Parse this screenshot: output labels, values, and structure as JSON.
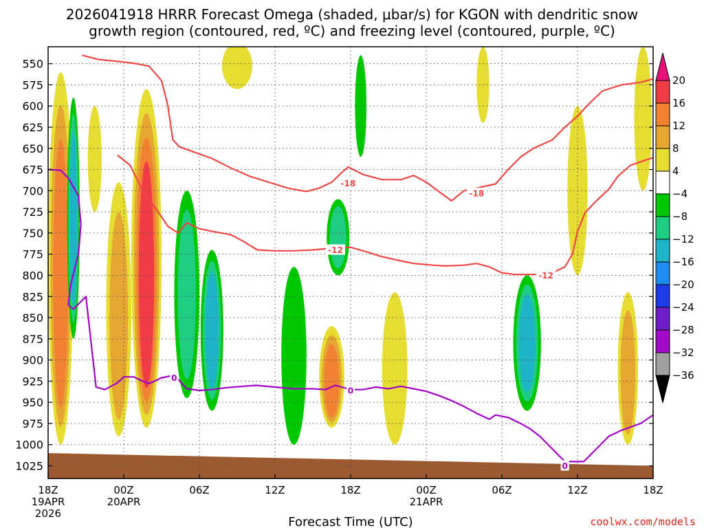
{
  "chart_data": {
    "type": "time-height",
    "title_line1": "2026041918 HRRR Forecast Omega (shaded, μbar/s) for KGON with dendritic snow",
    "title_line2": "growth region (contoured, red, ºC) and freezing level (contoured, purple, ºC)",
    "xlabel": "Forecast Time (UTC)",
    "credit": "coolwx.com/models",
    "y_axis": {
      "unit": "hPa",
      "range": [
        530,
        1040
      ],
      "ticks": [
        550,
        575,
        600,
        625,
        650,
        675,
        700,
        725,
        750,
        775,
        800,
        825,
        850,
        875,
        900,
        925,
        950,
        975,
        1000,
        1025
      ]
    },
    "x_axis": {
      "unit": "forecast hour",
      "range": [
        0,
        48
      ],
      "ticks": [
        {
          "hour": 0,
          "label": "18Z",
          "date": "19APR",
          "year": "2026"
        },
        {
          "hour": 6,
          "label": "00Z",
          "date": "20APR"
        },
        {
          "hour": 12,
          "label": "06Z"
        },
        {
          "hour": 18,
          "label": "12Z"
        },
        {
          "hour": 24,
          "label": "18Z"
        },
        {
          "hour": 30,
          "label": "00Z",
          "date": "21APR"
        },
        {
          "hour": 36,
          "label": "06Z"
        },
        {
          "hour": 42,
          "label": "12Z"
        },
        {
          "hour": 48,
          "label": "18Z"
        }
      ]
    },
    "colorbar": {
      "labels": [
        "20",
        "16",
        "12",
        "8",
        "4",
        "−4",
        "−8",
        "−12",
        "−16",
        "−20",
        "−24",
        "−28",
        "−32",
        "−36"
      ],
      "bins": [
        {
          "from": 16,
          "to": 20,
          "color": "#f03c46"
        },
        {
          "from": 12,
          "to": 16,
          "color": "#f08232"
        },
        {
          "from": 8,
          "to": 12,
          "color": "#e6a632"
        },
        {
          "from": 4,
          "to": 8,
          "color": "#e6dc32"
        },
        {
          "from": -4,
          "to": 4,
          "color": "#ffffff"
        },
        {
          "from": -8,
          "to": -4,
          "color": "#00c800"
        },
        {
          "from": -12,
          "to": -8,
          "color": "#1ecc82"
        },
        {
          "from": -16,
          "to": -12,
          "color": "#1eb4c8"
        },
        {
          "from": -20,
          "to": -16,
          "color": "#1e8cf0"
        },
        {
          "from": -24,
          "to": -20,
          "color": "#1e3ce6"
        },
        {
          "from": -28,
          "to": -24,
          "color": "#6e1ec8"
        },
        {
          "from": -32,
          "to": -28,
          "color": "#a00ac8"
        },
        {
          "from": -36,
          "to": -32,
          "color": "#a0a0a0"
        }
      ],
      "over_color": "#e6147a",
      "under_color": "#000000"
    },
    "omega_features": [
      {
        "hour": 1.0,
        "p_top": 560,
        "p_bot": 1000,
        "peak": 13,
        "hw": 1.0
      },
      {
        "hour": 2.0,
        "p_top": 590,
        "p_bot": 875,
        "peak": -14,
        "hw": 0.5
      },
      {
        "hour": 3.7,
        "p_top": 600,
        "p_bot": 725,
        "peak": 5,
        "hw": 0.55
      },
      {
        "hour": 5.6,
        "p_top": 690,
        "p_bot": 990,
        "peak": 12,
        "hw": 1.0
      },
      {
        "hour": 7.8,
        "p_top": 580,
        "p_bot": 980,
        "peak": 19,
        "hw": 1.2
      },
      {
        "hour": 11.0,
        "p_top": 700,
        "p_bot": 945,
        "peak": -9,
        "hw": 1.0
      },
      {
        "hour": 13.0,
        "p_top": 770,
        "p_bot": 960,
        "peak": -13,
        "hw": 0.9
      },
      {
        "hour": 15.0,
        "p_top": 525,
        "p_bot": 580,
        "peak": 5,
        "hw": 1.2
      },
      {
        "hour": 19.5,
        "p_top": 790,
        "p_bot": 1000,
        "peak": -6,
        "hw": 1.0
      },
      {
        "hour": 22.5,
        "p_top": 860,
        "p_bot": 980,
        "peak": 13,
        "hw": 1.0
      },
      {
        "hour": 23.0,
        "p_top": 710,
        "p_bot": 800,
        "peak": -12,
        "hw": 0.9
      },
      {
        "hour": 24.8,
        "p_top": 540,
        "p_bot": 660,
        "peak": -5,
        "hw": 0.45
      },
      {
        "hour": 27.5,
        "p_top": 820,
        "p_bot": 1000,
        "peak": 6,
        "hw": 1.0
      },
      {
        "hour": 34.5,
        "p_top": 530,
        "p_bot": 620,
        "peak": 5,
        "hw": 0.5
      },
      {
        "hour": 38.0,
        "p_top": 800,
        "p_bot": 960,
        "peak": -13,
        "hw": 1.1
      },
      {
        "hour": 42.0,
        "p_top": 600,
        "p_bot": 800,
        "peak": 5,
        "hw": 0.8
      },
      {
        "hour": 46.0,
        "p_top": 820,
        "p_bot": 1000,
        "peak": 9,
        "hw": 0.8
      },
      {
        "hour": 47.2,
        "p_top": 530,
        "p_bot": 700,
        "peak": 8,
        "hw": 0.7
      }
    ],
    "contours": [
      {
        "label": "-18",
        "color": "#f04646",
        "label_points": [
          {
            "hour": 23.8,
            "p": 691
          },
          {
            "hour": 34.0,
            "p": 703
          }
        ],
        "points": [
          [
            2.7,
            540
          ],
          [
            4,
            545
          ],
          [
            6,
            548
          ],
          [
            7,
            550
          ],
          [
            8,
            553
          ],
          [
            9,
            570
          ],
          [
            9.5,
            600
          ],
          [
            9.9,
            640
          ],
          [
            10.4,
            648
          ],
          [
            11.5,
            654
          ],
          [
            13,
            662
          ],
          [
            14.6,
            674
          ],
          [
            16,
            683
          ],
          [
            17.5,
            690
          ],
          [
            19,
            697
          ],
          [
            20.5,
            701
          ],
          [
            21.5,
            697
          ],
          [
            22.5,
            690
          ],
          [
            23.2,
            680
          ],
          [
            23.8,
            672
          ],
          [
            25,
            681
          ],
          [
            26.5,
            687
          ],
          [
            28,
            687
          ],
          [
            29,
            682
          ],
          [
            30,
            690
          ],
          [
            31,
            701
          ],
          [
            32,
            712
          ],
          [
            33,
            700
          ],
          [
            34,
            697
          ],
          [
            35.5,
            692
          ],
          [
            36.5,
            675
          ],
          [
            37.5,
            660
          ],
          [
            38.5,
            650
          ],
          [
            40,
            640
          ],
          [
            41,
            625
          ],
          [
            42,
            612
          ],
          [
            43,
            596
          ],
          [
            44,
            582
          ],
          [
            45.5,
            575
          ],
          [
            47,
            572
          ],
          [
            48,
            568
          ]
        ]
      },
      {
        "label": "-12",
        "color": "#f04646",
        "label_points": [
          {
            "hour": 22.8,
            "p": 770
          },
          {
            "hour": 39.5,
            "p": 800
          }
        ],
        "points": [
          [
            5.5,
            658
          ],
          [
            6.5,
            670
          ],
          [
            7.5,
            700
          ],
          [
            8.5,
            720
          ],
          [
            9.5,
            742
          ],
          [
            10.3,
            750
          ],
          [
            11,
            738
          ],
          [
            12,
            745
          ],
          [
            13,
            748
          ],
          [
            14.5,
            752
          ],
          [
            15.5,
            760
          ],
          [
            16.6,
            770
          ],
          [
            18,
            771
          ],
          [
            19.5,
            771
          ],
          [
            21,
            770
          ],
          [
            22.5,
            768
          ],
          [
            24,
            767
          ],
          [
            25,
            771
          ],
          [
            26.5,
            778
          ],
          [
            28,
            783
          ],
          [
            29,
            786
          ],
          [
            30.5,
            788
          ],
          [
            31.5,
            789
          ],
          [
            33,
            788
          ],
          [
            34,
            786
          ],
          [
            35,
            790
          ],
          [
            36,
            797
          ],
          [
            37,
            799
          ],
          [
            38.6,
            799
          ],
          [
            40,
            797
          ],
          [
            41,
            790
          ],
          [
            41.6,
            775
          ],
          [
            42,
            748
          ],
          [
            42.6,
            726
          ],
          [
            43.5,
            712
          ],
          [
            44.5,
            698
          ],
          [
            45.2,
            683
          ],
          [
            46.2,
            670
          ],
          [
            47.2,
            665
          ],
          [
            48,
            661
          ]
        ]
      },
      {
        "label": "0",
        "color": "#a000c8",
        "label_points": [
          {
            "hour": 10.0,
            "p": 921
          },
          {
            "hour": 24.0,
            "p": 936
          },
          {
            "hour": 41.0,
            "p": 1025
          }
        ],
        "points": [
          [
            0,
            675
          ],
          [
            1,
            676
          ],
          [
            1.6,
            685
          ],
          [
            2.4,
            706
          ],
          [
            2.6,
            740
          ],
          [
            2.4,
            775
          ],
          [
            1.8,
            810
          ],
          [
            1.6,
            835
          ],
          [
            2,
            840
          ],
          [
            3,
            825
          ],
          [
            3.8,
            932
          ],
          [
            4.5,
            935
          ],
          [
            5.5,
            927
          ],
          [
            6,
            920
          ],
          [
            6.8,
            920
          ],
          [
            7.5,
            925
          ],
          [
            8,
            928
          ],
          [
            9,
            921
          ],
          [
            10,
            918
          ],
          [
            11,
            934
          ],
          [
            12,
            936
          ],
          [
            13,
            935
          ],
          [
            14,
            933
          ],
          [
            15.5,
            931
          ],
          [
            16.5,
            930
          ],
          [
            18,
            932
          ],
          [
            19.5,
            934
          ],
          [
            21,
            934
          ],
          [
            22,
            935
          ],
          [
            22.8,
            930
          ],
          [
            24,
            935
          ],
          [
            25,
            935
          ],
          [
            26,
            932
          ],
          [
            27,
            934
          ],
          [
            28,
            931
          ],
          [
            29,
            934
          ],
          [
            30,
            937
          ],
          [
            31,
            942
          ],
          [
            32,
            948
          ],
          [
            33,
            955
          ],
          [
            34,
            963
          ],
          [
            35,
            970
          ],
          [
            35.5,
            965
          ],
          [
            36.5,
            968
          ],
          [
            37.5,
            975
          ],
          [
            38.3,
            982
          ],
          [
            39,
            990
          ],
          [
            40,
            1005
          ],
          [
            41,
            1020
          ],
          [
            42.5,
            1020
          ],
          [
            43.5,
            1005
          ],
          [
            44.5,
            990
          ],
          [
            45.5,
            983
          ],
          [
            47,
            975
          ],
          [
            48,
            965
          ]
        ]
      }
    ],
    "terrain": {
      "color": "#9c5a31",
      "p_surface_start": 1010,
      "p_surface_end": 1025
    }
  }
}
